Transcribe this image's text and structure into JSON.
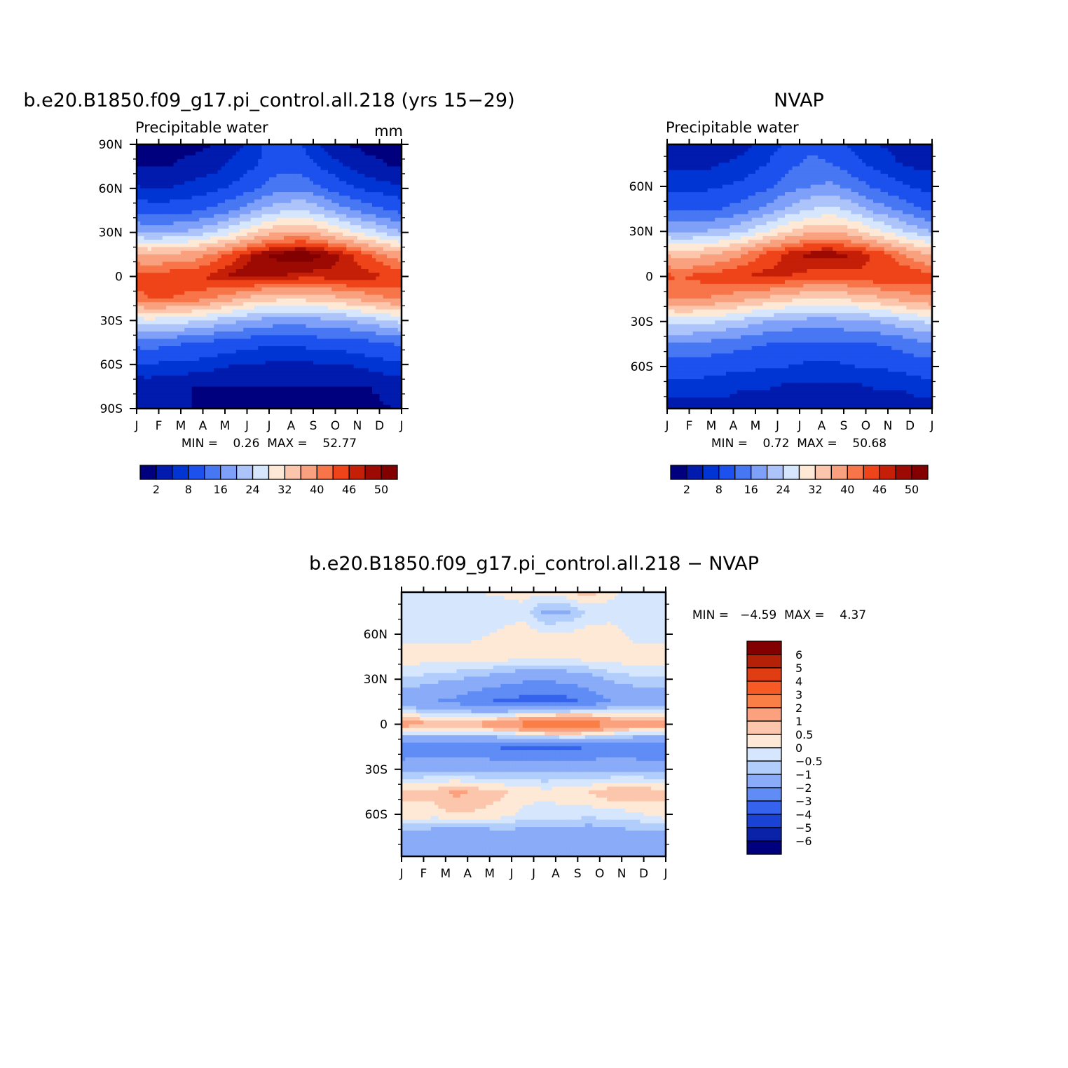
{
  "figure": {
    "panel_a": {
      "title": "b.e20.B1850.f09_g17.pi_control.all.218 (yrs 15−29)",
      "left_string": "Precipitable water",
      "right_string": "mm",
      "minmax": "MIN =    0.26  MAX =    52.77"
    },
    "panel_b": {
      "title": "NVAP",
      "left_string": "Precipitable water",
      "minmax": "MIN =    0.72  MAX =    50.68"
    },
    "panel_c": {
      "title": "b.e20.B1850.f09_g17.pi_control.all.218 − NVAP",
      "minmax": "MIN =   −4.59  MAX =    4.37"
    }
  },
  "chart_data": [
    {
      "type": "heatmap",
      "title": "b.e20.B1850.f09_g17.pi_control.all.218 (yrs 15−29)",
      "subtitle_left": "Precipitable water",
      "units": "mm",
      "x_tick_labels": [
        "J",
        "F",
        "M",
        "A",
        "M",
        "J",
        "J",
        "A",
        "S",
        "O",
        "N",
        "D",
        "J"
      ],
      "y_tick_labels": [
        "90N",
        "60N",
        "30N",
        "0",
        "30S",
        "60S",
        "90S"
      ],
      "ylim": [
        -90,
        90
      ],
      "min": 0.26,
      "max": 52.77,
      "colorbar_levels": [
        2,
        5,
        8,
        12,
        16,
        20,
        24,
        28,
        32,
        36,
        40,
        43,
        46,
        48,
        50
      ],
      "colorbar_labels": [
        "2",
        "8",
        "16",
        "24",
        "32",
        "40",
        "46",
        "50"
      ],
      "colorbar_colors": [
        "#00007f",
        "#001bad",
        "#0035d4",
        "#1c51ee",
        "#4877f3",
        "#7fa0f8",
        "#acc4fa",
        "#d6e7fd",
        "#fee8d6",
        "#fcc6ac",
        "#f9a07e",
        "#f77549",
        "#ef4419",
        "#c51f08",
        "#9c0a03",
        "#820000"
      ],
      "climatology": {
        "lat": [
          -90,
          -75,
          -60,
          -45,
          -30,
          -15,
          0,
          15,
          30,
          45,
          60,
          75,
          90
        ],
        "month": [
          "J",
          "F",
          "M",
          "A",
          "M",
          "J",
          "J",
          "A",
          "S",
          "O",
          "N",
          "D"
        ],
        "values": [
          [
            2,
            3,
            8,
            14,
            27,
            43,
            44,
            36,
            19,
            10,
            5,
            2,
            1
          ],
          [
            2,
            3,
            7,
            13,
            26,
            43,
            45,
            37,
            20,
            10,
            5,
            2,
            1
          ],
          [
            2,
            2,
            7,
            12,
            25,
            42,
            45,
            38,
            21,
            11,
            6,
            3,
            1
          ],
          [
            1,
            2,
            6,
            11,
            23,
            40,
            47,
            41,
            24,
            13,
            7,
            4,
            2
          ],
          [
            1,
            2,
            5,
            10,
            21,
            37,
            49,
            45,
            28,
            16,
            9,
            6,
            4
          ],
          [
            1,
            2,
            5,
            9,
            19,
            34,
            49,
            49,
            33,
            20,
            12,
            8,
            7
          ],
          [
            1,
            2,
            4,
            9,
            18,
            33,
            48,
            51,
            36,
            23,
            15,
            11,
            11
          ],
          [
            1,
            2,
            4,
            9,
            18,
            33,
            47,
            52,
            37,
            24,
            15,
            10,
            8
          ],
          [
            1,
            2,
            5,
            10,
            19,
            34,
            47,
            50,
            34,
            21,
            12,
            7,
            4
          ],
          [
            1,
            2,
            5,
            10,
            20,
            36,
            48,
            47,
            30,
            17,
            9,
            5,
            2
          ],
          [
            1,
            2,
            6,
            11,
            22,
            38,
            47,
            43,
            26,
            14,
            7,
            3,
            1
          ],
          [
            2,
            3,
            7,
            12,
            24,
            40,
            46,
            39,
            22,
            12,
            6,
            2,
            1
          ]
        ]
      }
    },
    {
      "type": "heatmap",
      "title": "NVAP",
      "subtitle_left": "Precipitable water",
      "x_tick_labels": [
        "J",
        "F",
        "M",
        "A",
        "M",
        "J",
        "J",
        "A",
        "S",
        "O",
        "N",
        "D",
        "J"
      ],
      "y_tick_labels": [
        "60N",
        "30N",
        "0",
        "30S",
        "60S"
      ],
      "ylim": [
        -88,
        88
      ],
      "min": 0.72,
      "max": 50.68,
      "colorbar_levels": [
        2,
        5,
        8,
        12,
        16,
        20,
        24,
        28,
        32,
        36,
        40,
        43,
        46,
        48,
        50
      ],
      "colorbar_labels": [
        "2",
        "8",
        "16",
        "24",
        "32",
        "40",
        "46",
        "50"
      ],
      "climatology": {
        "lat": [
          -88,
          -75,
          -60,
          -45,
          -30,
          -15,
          0,
          15,
          30,
          45,
          60,
          75,
          88
        ],
        "month": [
          "J",
          "F",
          "M",
          "A",
          "M",
          "J",
          "J",
          "A",
          "S",
          "O",
          "N",
          "D"
        ],
        "values": [
          [
            4,
            6,
            10,
            16,
            26,
            40,
            43,
            34,
            19,
            11,
            7,
            4,
            3
          ],
          [
            4,
            6,
            10,
            15,
            25,
            40,
            44,
            35,
            20,
            11,
            7,
            4,
            3
          ],
          [
            4,
            6,
            9,
            14,
            24,
            39,
            45,
            37,
            21,
            12,
            8,
            5,
            3
          ],
          [
            3,
            5,
            9,
            13,
            22,
            37,
            46,
            40,
            24,
            14,
            9,
            6,
            4
          ],
          [
            3,
            5,
            8,
            12,
            20,
            35,
            47,
            44,
            28,
            17,
            11,
            8,
            6
          ],
          [
            2,
            4,
            8,
            11,
            19,
            33,
            46,
            47,
            32,
            21,
            14,
            11,
            9
          ],
          [
            2,
            4,
            7,
            11,
            18,
            32,
            45,
            49,
            35,
            24,
            16,
            13,
            11
          ],
          [
            2,
            4,
            7,
            11,
            18,
            32,
            45,
            49,
            36,
            25,
            17,
            12,
            10
          ],
          [
            2,
            4,
            8,
            12,
            19,
            33,
            45,
            48,
            33,
            22,
            14,
            9,
            7
          ],
          [
            3,
            5,
            8,
            12,
            20,
            35,
            46,
            45,
            29,
            18,
            11,
            7,
            5
          ],
          [
            3,
            5,
            9,
            13,
            22,
            37,
            46,
            41,
            25,
            15,
            9,
            5,
            4
          ],
          [
            4,
            6,
            10,
            15,
            24,
            39,
            45,
            37,
            21,
            12,
            7,
            4,
            3
          ]
        ]
      }
    },
    {
      "type": "heatmap",
      "title": "b.e20.B1850.f09_g17.pi_control.all.218 − NVAP",
      "x_tick_labels": [
        "J",
        "F",
        "M",
        "A",
        "M",
        "J",
        "J",
        "A",
        "S",
        "O",
        "N",
        "D",
        "J"
      ],
      "y_tick_labels": [
        "60N",
        "30N",
        "0",
        "30S",
        "60S"
      ],
      "ylim": [
        -88,
        88
      ],
      "min": -4.59,
      "max": 4.37,
      "colorbar_levels": [
        -6,
        -5,
        -4,
        -3,
        -2,
        -1,
        -0.5,
        0,
        0.5,
        1,
        2,
        3,
        4,
        5,
        6
      ],
      "colorbar_labels": [
        "6",
        "5",
        "4",
        "3",
        "2",
        "1",
        "0.5",
        "0",
        "−0.5",
        "−1",
        "−2",
        "−3",
        "−4",
        "−5",
        "−6"
      ],
      "colorbar_colors": [
        "#820000",
        "#b52106",
        "#e13d12",
        "#f85a26",
        "#fa7f47",
        "#fba17d",
        "#fcc6ad",
        "#fee8d6",
        "#d6e7fd",
        "#b1cdfb",
        "#89abf8",
        "#5f8cf5",
        "#3663ee",
        "#1a43d6",
        "#0a22a8",
        "#00007f"
      ],
      "difference": {
        "lat": [
          -88,
          -75,
          -60,
          -45,
          -30,
          -15,
          0,
          15,
          30,
          45,
          60,
          75,
          88
        ],
        "month": [
          "J",
          "F",
          "M",
          "A",
          "M",
          "J",
          "J",
          "A",
          "S",
          "O",
          "N",
          "D"
        ],
        "values": [
          [
            -1.5,
            -1.5,
            0.4,
            0.6,
            -1.2,
            -2.8,
            1.3,
            -1.8,
            -0.6,
            0.3,
            -0.2,
            -0.3,
            -0.2
          ],
          [
            -1.3,
            -1.8,
            0.3,
            0.7,
            -1.1,
            -2.8,
            1.2,
            -2.0,
            -0.8,
            0.3,
            -0.2,
            -0.4,
            -0.2
          ],
          [
            -1.4,
            -2.0,
            0.5,
            1.2,
            -1.2,
            -2.6,
            1.0,
            -2.3,
            -1.0,
            0.4,
            -0.3,
            -0.5,
            -0.1
          ],
          [
            -1.6,
            -1.9,
            0.4,
            0.8,
            -1.3,
            -2.7,
            1.2,
            -2.8,
            -1.2,
            0.3,
            -0.1,
            -0.4,
            0.0
          ],
          [
            -1.5,
            -1.6,
            0.3,
            0.6,
            -1.2,
            -3.1,
            1.8,
            -3.2,
            -1.5,
            0.3,
            0.1,
            -0.3,
            0.1
          ],
          [
            -1.3,
            -1.5,
            -0.2,
            0.3,
            -1.2,
            -3.3,
            2.5,
            -3.4,
            -1.8,
            0.2,
            0.3,
            -0.2,
            0.2
          ],
          [
            -1.2,
            -1.4,
            -0.3,
            0.2,
            -1.3,
            -3.4,
            3.2,
            -3.6,
            -1.9,
            0.2,
            0.1,
            -1.2,
            0.3
          ],
          [
            -1.5,
            -1.6,
            -0.2,
            0.3,
            -1.3,
            -3.3,
            3.3,
            -3.4,
            -1.7,
            0.2,
            0.1,
            -1.1,
            0.4
          ],
          [
            -1.6,
            -1.8,
            -0.3,
            0.5,
            -1.2,
            -3.0,
            2.8,
            -2.8,
            -1.4,
            0.3,
            0.3,
            -0.4,
            0.8
          ],
          [
            -1.3,
            -1.5,
            -0.2,
            0.9,
            -1.3,
            -2.8,
            2.0,
            -2.0,
            -0.9,
            0.3,
            0.3,
            -0.3,
            0.2
          ],
          [
            -1.2,
            -1.4,
            -0.2,
            1.0,
            -1.2,
            -2.9,
            1.5,
            -1.7,
            -0.7,
            0.4,
            -0.2,
            -0.5,
            -0.2
          ],
          [
            -1.4,
            -1.5,
            0.2,
            0.8,
            -1.4,
            -3.0,
            1.6,
            -1.8,
            -0.6,
            0.3,
            -0.3,
            -0.4,
            -0.3
          ]
        ]
      }
    }
  ]
}
